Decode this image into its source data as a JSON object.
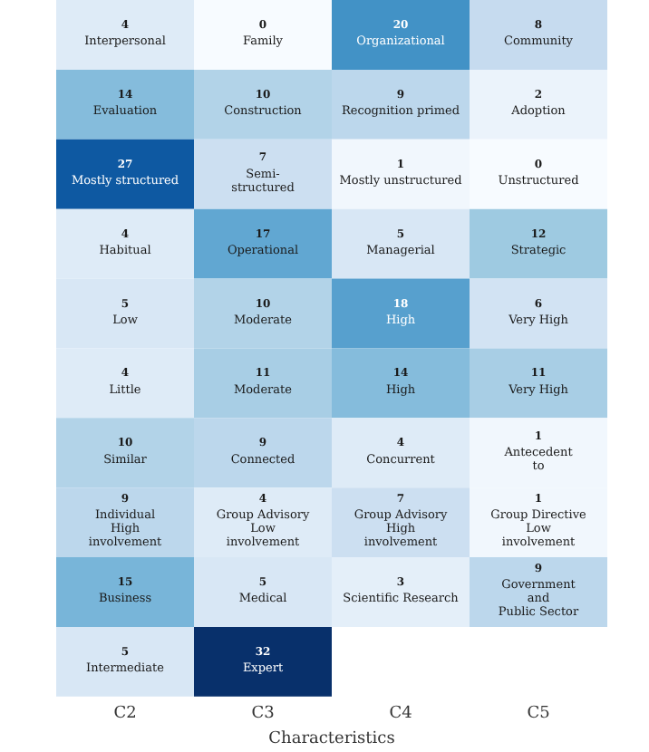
{
  "chart_data": {
    "type": "heatmap",
    "xlabel": "Characteristics",
    "tick_labels": "x",
    "categories": [
      "C2",
      "C3",
      "C4",
      "C5"
    ],
    "y_categories": [
      null,
      null,
      null,
      null,
      null,
      null,
      null,
      null,
      null,
      null
    ],
    "cells": [
      [
        4,
        0,
        20,
        8
      ],
      [
        14,
        10,
        9,
        2
      ],
      [
        27,
        7,
        1,
        0
      ],
      [
        4,
        17,
        5,
        12
      ],
      [
        5,
        10,
        18,
        6
      ],
      [
        4,
        11,
        14,
        11
      ],
      [
        10,
        9,
        4,
        1
      ],
      [
        9,
        4,
        7,
        1
      ],
      [
        15,
        5,
        3,
        9
      ],
      [
        5,
        32,
        null,
        null
      ]
    ],
    "cell_labels": [
      [
        "4\nInterpersonal",
        "0\nFamily",
        "20\nOrganizational",
        "8\nCommunity"
      ],
      [
        "14\nEvaluation",
        "10\nConstruction",
        "9\nRecognition primed",
        "2\nAdoption"
      ],
      [
        "27\nMostly structured",
        "7\nSemi-\nstructured",
        "1\nMostly unstructured",
        "0\nUnstructured"
      ],
      [
        "4\nHabitual",
        "17\nOperational",
        "5\nManagerial",
        "12\nStrategic"
      ],
      [
        "5\nLow",
        "10\nModerate",
        "18\nHigh",
        "6\nVery High"
      ],
      [
        "4\nLittle",
        "11\nModerate",
        "14\nHigh",
        "11\nVery High"
      ],
      [
        "10\nSimilar",
        "9\nConnected",
        "4\nConcurrent",
        "1\nAntecedent\nto"
      ],
      [
        "9\nIndividual\nHigh\ninvolvement",
        "4\nGroup Advisory\nLow\ninvolvement",
        "7\nGroup Advisory\nHigh\ninvolvement",
        "1\nGroup Directive\nLow\ninvolvement"
      ],
      [
        "15\nBusiness",
        "5\nMedical",
        "3\nScientific Research",
        "9\nGovernment\nand\nPublic Sector"
      ],
      [
        "5\nIntermediate",
        "32\nExpert",
        null,
        null
      ]
    ]
  }
}
